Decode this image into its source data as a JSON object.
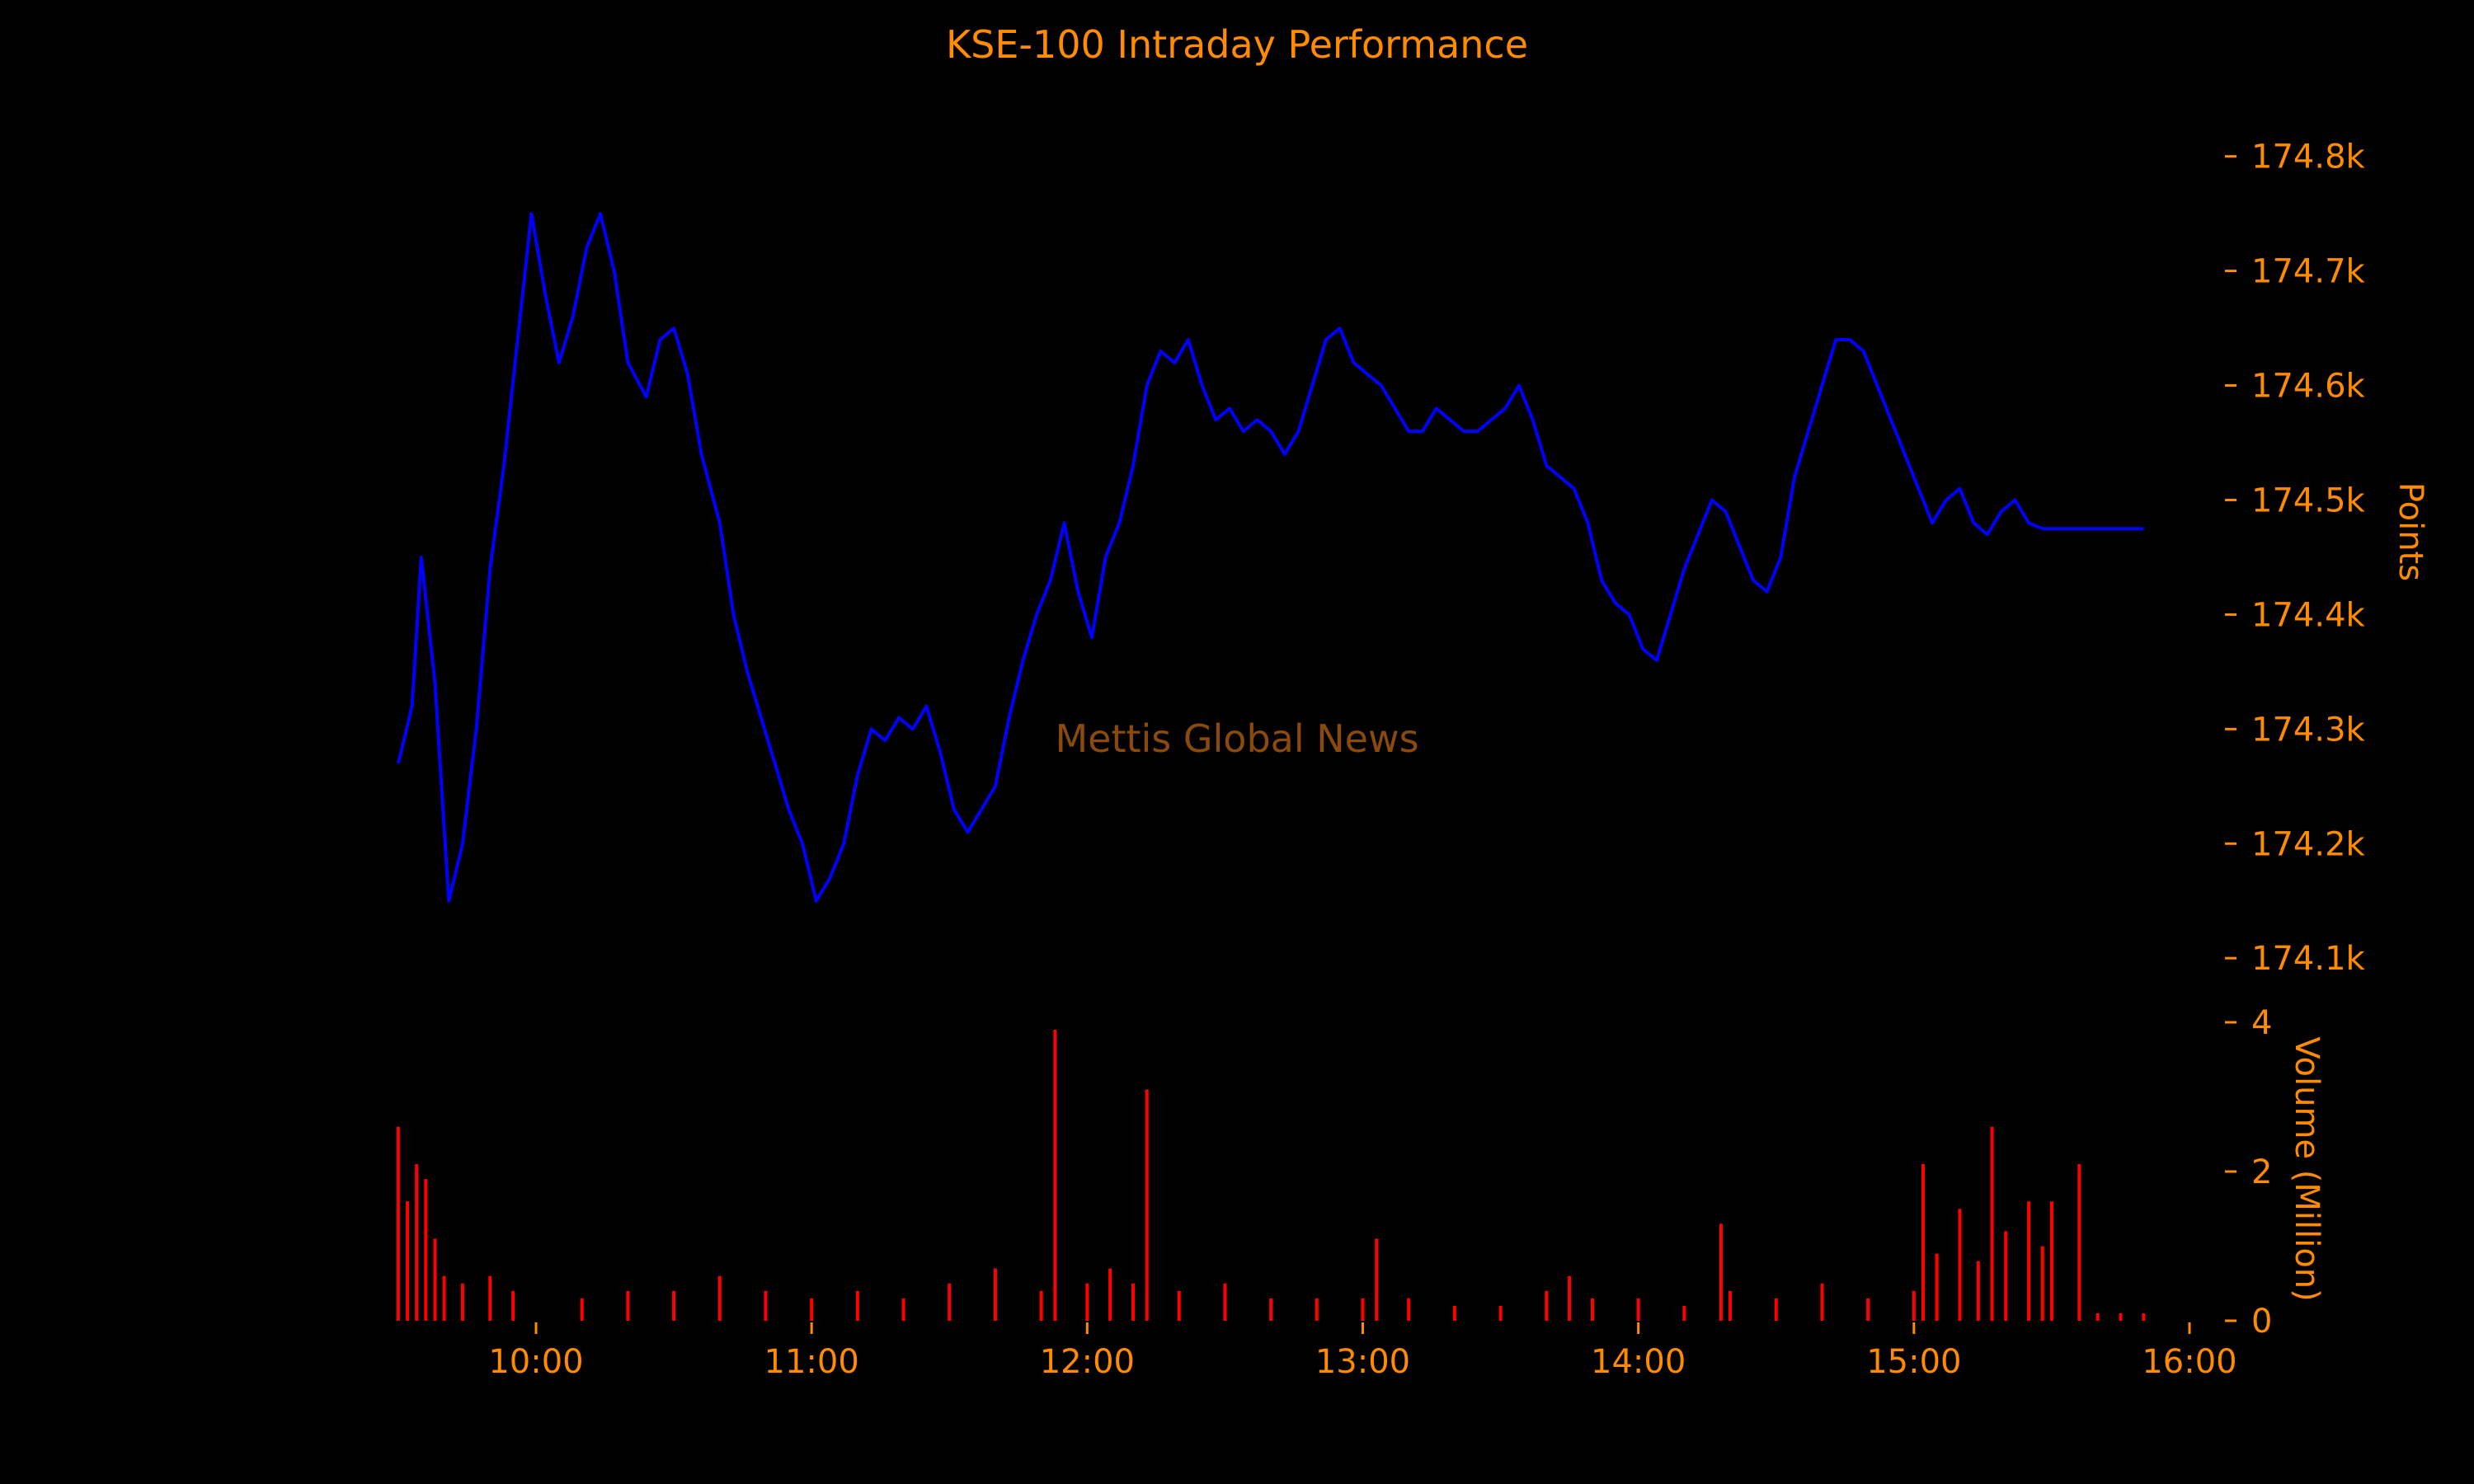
{
  "chart_data": {
    "type": "line",
    "title": "KSE-100 Intraday Performance",
    "watermark": "Mettis Global News",
    "colors": {
      "background": "#000000",
      "text": "#ff8c00",
      "price_line": "#0000ff",
      "volume_bars": "#ff0000",
      "watermark": "#8a4a0c"
    },
    "x_axis": {
      "ticks": [
        "10:00",
        "11:00",
        "12:00",
        "13:00",
        "14:00",
        "15:00",
        "16:00"
      ],
      "range": [
        "09:30",
        "16:00"
      ]
    },
    "price_panel": {
      "ylabel": "Points",
      "yaxis_side": "right",
      "ylim": [
        174080,
        174830
      ],
      "ticks": [
        174100,
        174200,
        174300,
        174400,
        174500,
        174600,
        174700,
        174800
      ],
      "tick_labels": [
        "174.1k",
        "174.2k",
        "174.3k",
        "174.4k",
        "174.5k",
        "174.6k",
        "174.7k",
        "174.8k"
      ],
      "series": [
        {
          "x": [
            "09:30",
            "09:33",
            "09:35",
            "09:38",
            "09:41",
            "09:44",
            "09:47",
            "09:50",
            "09:53",
            "09:56",
            "09:59",
            "10:02",
            "10:05",
            "10:08",
            "10:11",
            "10:14",
            "10:17",
            "10:20",
            "10:24",
            "10:27",
            "10:30",
            "10:33",
            "10:36",
            "10:40",
            "10:43",
            "10:46",
            "10:49",
            "10:52",
            "10:55",
            "10:58",
            "11:01",
            "11:04",
            "11:07",
            "11:10",
            "11:13",
            "11:16",
            "11:19",
            "11:22",
            "11:25",
            "11:28",
            "11:31",
            "11:34",
            "11:37",
            "11:40",
            "11:43",
            "11:46",
            "11:49",
            "11:52",
            "11:55",
            "11:58",
            "12:01",
            "12:04",
            "12:07",
            "12:10",
            "12:13",
            "12:16",
            "12:19",
            "12:22",
            "12:25",
            "12:28",
            "12:31",
            "12:34",
            "12:37",
            "12:40",
            "12:43",
            "12:46",
            "12:49",
            "12:52",
            "12:55",
            "12:58",
            "13:01",
            "13:04",
            "13:07",
            "13:10",
            "13:13",
            "13:16",
            "13:19",
            "13:22",
            "13:25",
            "13:28",
            "13:31",
            "13:34",
            "13:37",
            "13:40",
            "13:43",
            "13:46",
            "13:49",
            "13:52",
            "13:55",
            "13:58",
            "14:01",
            "14:04",
            "14:07",
            "14:10",
            "14:13",
            "14:16",
            "14:19",
            "14:22",
            "14:25",
            "14:28",
            "14:31",
            "14:34",
            "14:37",
            "14:40",
            "14:43",
            "14:46",
            "14:49",
            "14:52",
            "14:55",
            "14:58",
            "15:01",
            "15:04",
            "15:07",
            "15:10",
            "15:13",
            "15:16",
            "15:19",
            "15:22",
            "15:25",
            "15:28",
            "15:30",
            "15:50"
          ],
          "y": [
            174270,
            174320,
            174450,
            174340,
            174150,
            174200,
            174300,
            174440,
            174530,
            174640,
            174750,
            174680,
            174620,
            174660,
            174720,
            174750,
            174700,
            174620,
            174590,
            174640,
            174650,
            174610,
            174540,
            174480,
            174400,
            174350,
            174310,
            174270,
            174230,
            174200,
            174150,
            174170,
            174200,
            174260,
            174300,
            174290,
            174310,
            174300,
            174320,
            174280,
            174230,
            174210,
            174230,
            174250,
            174310,
            174360,
            174400,
            174430,
            174480,
            174420,
            174380,
            174450,
            174480,
            174530,
            174600,
            174630,
            174620,
            174640,
            174600,
            174570,
            174580,
            174560,
            174570,
            174560,
            174540,
            174560,
            174600,
            174640,
            174650,
            174620,
            174610,
            174600,
            174580,
            174560,
            174560,
            174580,
            174570,
            174560,
            174560,
            174570,
            174580,
            174600,
            174570,
            174530,
            174520,
            174510,
            174480,
            174430,
            174410,
            174400,
            174370,
            174360,
            174400,
            174440,
            174470,
            174500,
            174490,
            174460,
            174430,
            174420,
            174450,
            174520,
            174560,
            174600,
            174640,
            174640,
            174630,
            174600,
            174570,
            174540,
            174510,
            174480,
            174500,
            174510,
            174480,
            174470,
            174490,
            174500,
            174480,
            174475,
            174475,
            174475
          ]
        }
      ]
    },
    "volume_panel": {
      "ylabel": "Volume (Million)",
      "yaxis_side": "right",
      "ylim": [
        0,
        4
      ],
      "ticks": [
        0,
        2,
        4
      ],
      "tick_labels": [
        "0",
        "2",
        "4"
      ],
      "series": [
        {
          "x": [
            "09:30",
            "09:32",
            "09:34",
            "09:36",
            "09:38",
            "09:40",
            "09:44",
            "09:50",
            "09:55",
            "10:10",
            "10:20",
            "10:30",
            "10:40",
            "10:50",
            "11:00",
            "11:10",
            "11:20",
            "11:30",
            "11:40",
            "11:50",
            "11:53",
            "12:00",
            "12:05",
            "12:10",
            "12:13",
            "12:20",
            "12:30",
            "12:40",
            "12:50",
            "13:00",
            "13:03",
            "13:10",
            "13:20",
            "13:30",
            "13:40",
            "13:45",
            "13:50",
            "14:00",
            "14:10",
            "14:18",
            "14:20",
            "14:30",
            "14:40",
            "14:50",
            "15:00",
            "15:02",
            "15:05",
            "15:10",
            "15:14",
            "15:17",
            "15:20",
            "15:25",
            "15:28",
            "15:30",
            "15:36",
            "15:40",
            "15:45",
            "15:50"
          ],
          "values": [
            2.6,
            1.6,
            2.1,
            1.9,
            1.1,
            0.6,
            0.5,
            0.6,
            0.4,
            0.3,
            0.4,
            0.4,
            0.6,
            0.4,
            0.3,
            0.4,
            0.3,
            0.5,
            0.7,
            0.4,
            3.9,
            0.5,
            0.7,
            0.5,
            3.1,
            0.4,
            0.5,
            0.3,
            0.3,
            0.3,
            1.1,
            0.3,
            0.2,
            0.2,
            0.4,
            0.6,
            0.3,
            0.3,
            0.2,
            1.3,
            0.4,
            0.3,
            0.5,
            0.3,
            0.4,
            2.1,
            0.9,
            1.5,
            0.8,
            2.6,
            1.2,
            1.6,
            1.0,
            1.6,
            2.1,
            0.1,
            0.1,
            0.1
          ]
        }
      ]
    }
  }
}
